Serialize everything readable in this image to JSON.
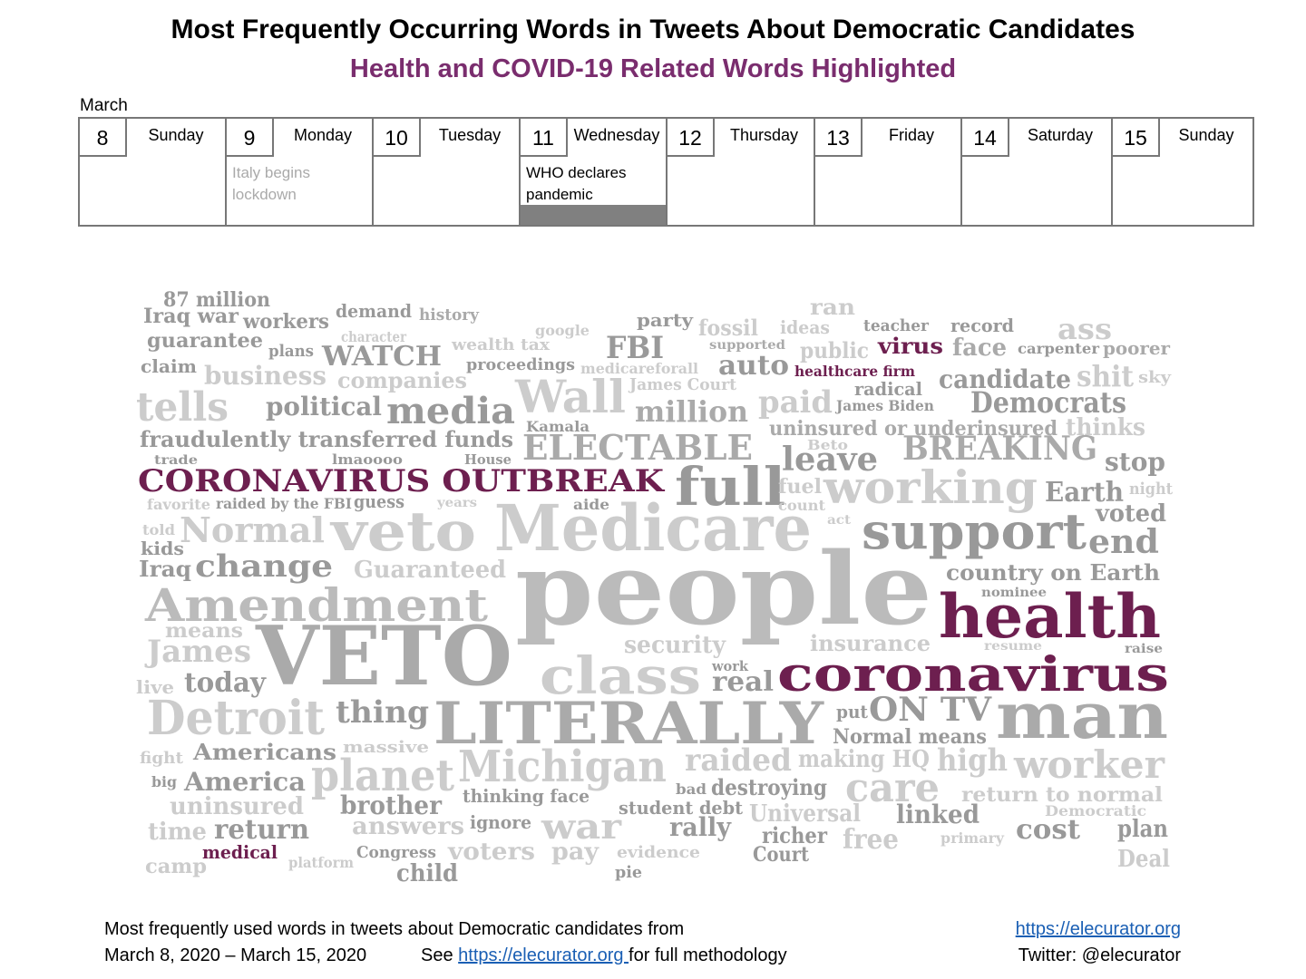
{
  "header": {
    "title": "Most Frequently Occurring Words in Tweets About Democratic Candidates",
    "subtitle": "Health and COVID-19 Related Words Highlighted"
  },
  "calendar": {
    "month": "March",
    "days": [
      {
        "date": 8,
        "weekday": "Sunday"
      },
      {
        "date": 9,
        "weekday": "Monday",
        "event": "Italy begins lockdown"
      },
      {
        "date": 10,
        "weekday": "Tuesday"
      },
      {
        "date": 11,
        "weekday": "Wednesday",
        "event": "WHO declares pandemic"
      },
      {
        "date": 12,
        "weekday": "Thursday"
      },
      {
        "date": 13,
        "weekday": "Friday"
      },
      {
        "date": 14,
        "weekday": "Saturday"
      },
      {
        "date": 15,
        "weekday": "Sunday"
      }
    ]
  },
  "word_cloud": {
    "words": [
      {
        "text": "87 million",
        "color": "#999"
      },
      {
        "text": "Iraq war",
        "color": "#999"
      },
      {
        "text": "workers",
        "color": "#999"
      },
      {
        "text": "demand",
        "color": "#999"
      },
      {
        "text": "history",
        "color": "#aaa"
      },
      {
        "text": "ran",
        "color": "#ccc"
      },
      {
        "text": "party",
        "color": "#999"
      },
      {
        "text": "fossil",
        "color": "#ccc"
      },
      {
        "text": "ideas",
        "color": "#ccc"
      },
      {
        "text": "teacher",
        "color": "#999"
      },
      {
        "text": "record",
        "color": "#999"
      },
      {
        "text": "ass",
        "color": "#ccc"
      },
      {
        "text": "google",
        "color": "#ccc"
      },
      {
        "text": "character",
        "color": "#ccc"
      },
      {
        "text": "guarantee",
        "color": "#999"
      },
      {
        "text": "plans",
        "color": "#999"
      },
      {
        "text": "WATCH",
        "color": "#999"
      },
      {
        "text": "wealth tax",
        "color": "#ccc"
      },
      {
        "text": "FBI",
        "color": "#999"
      },
      {
        "text": "supported",
        "color": "#aaa"
      },
      {
        "text": "public",
        "color": "#ccc"
      },
      {
        "text": "virus",
        "color": "#6d1f4f"
      },
      {
        "text": "face",
        "color": "#aaa"
      },
      {
        "text": "carpenter",
        "color": "#999"
      },
      {
        "text": "poorer",
        "color": "#aaa"
      },
      {
        "text": "claim",
        "color": "#999"
      },
      {
        "text": "business",
        "color": "#ccc"
      },
      {
        "text": "companies",
        "color": "#ccc"
      },
      {
        "text": "proceedings",
        "color": "#999"
      },
      {
        "text": "medicareforall",
        "color": "#ccc"
      },
      {
        "text": "auto",
        "color": "#999"
      },
      {
        "text": "healthcare firm",
        "color": "#6d1f4f"
      },
      {
        "text": "candidate",
        "color": "#999"
      },
      {
        "text": "shit",
        "color": "#ccc"
      },
      {
        "text": "sky",
        "color": "#ccc"
      },
      {
        "text": "James Court",
        "color": "#ccc"
      },
      {
        "text": "radical",
        "color": "#999"
      },
      {
        "text": "tells",
        "color": "#ccc"
      },
      {
        "text": "political",
        "color": "#999"
      },
      {
        "text": "media",
        "color": "#999"
      },
      {
        "text": "Wall",
        "color": "#ccc"
      },
      {
        "text": "million",
        "color": "#aaa"
      },
      {
        "text": "paid",
        "color": "#ccc"
      },
      {
        "text": "James Biden",
        "color": "#999"
      },
      {
        "text": "Democrats",
        "color": "#999"
      },
      {
        "text": "Kamala",
        "color": "#999"
      },
      {
        "text": "uninsured or underinsured",
        "color": "#aaa"
      },
      {
        "text": "thinks",
        "color": "#ccc"
      },
      {
        "text": "fraudulently transferred funds",
        "color": "#999"
      },
      {
        "text": "ELECTABLE",
        "color": "#aaa"
      },
      {
        "text": "Beto",
        "color": "#ccc"
      },
      {
        "text": "BREAKING",
        "color": "#aaa"
      },
      {
        "text": "trade",
        "color": "#999"
      },
      {
        "text": "lmaoooo",
        "color": "#999"
      },
      {
        "text": "House",
        "color": "#999"
      },
      {
        "text": "leave",
        "color": "#999"
      },
      {
        "text": "stop",
        "color": "#999"
      },
      {
        "text": "CORONAVIRUS OUTBREAK",
        "color": "#6d1f4f"
      },
      {
        "text": "full",
        "color": "#999"
      },
      {
        "text": "fuel",
        "color": "#ccc"
      },
      {
        "text": "working",
        "color": "#ccc"
      },
      {
        "text": "Earth",
        "color": "#999"
      },
      {
        "text": "night",
        "color": "#ccc"
      },
      {
        "text": "favorite",
        "color": "#ccc"
      },
      {
        "text": "raided by the FBI",
        "color": "#999"
      },
      {
        "text": "guess",
        "color": "#999"
      },
      {
        "text": "years",
        "color": "#ccc"
      },
      {
        "text": "aide",
        "color": "#999"
      },
      {
        "text": "count",
        "color": "#ccc"
      },
      {
        "text": "veto",
        "color": "#ccc"
      },
      {
        "text": "Medicare",
        "color": "#ccc"
      },
      {
        "text": "act",
        "color": "#ccc"
      },
      {
        "text": "voted",
        "color": "#999"
      },
      {
        "text": "told",
        "color": "#ccc"
      },
      {
        "text": "Normal",
        "color": "#ccc"
      },
      {
        "text": "support",
        "color": "#999"
      },
      {
        "text": "kids",
        "color": "#999"
      },
      {
        "text": "end",
        "color": "#999"
      },
      {
        "text": "Iraq",
        "color": "#999"
      },
      {
        "text": "change",
        "color": "#999"
      },
      {
        "text": "Guaranteed",
        "color": "#ccc"
      },
      {
        "text": "people",
        "color": "#bbb"
      },
      {
        "text": "country on Earth",
        "color": "#999"
      },
      {
        "text": "nominee",
        "color": "#999"
      },
      {
        "text": "Amendment",
        "color": "#bbb"
      },
      {
        "text": "health",
        "color": "#6d1f4f"
      },
      {
        "text": "means",
        "color": "#ccc"
      },
      {
        "text": "James",
        "color": "#ccc"
      },
      {
        "text": "VETO",
        "color": "#aaa"
      },
      {
        "text": "security",
        "color": "#ccc"
      },
      {
        "text": "insurance",
        "color": "#ccc"
      },
      {
        "text": "resume",
        "color": "#ccc"
      },
      {
        "text": "raise",
        "color": "#999"
      },
      {
        "text": "class",
        "color": "#ccc"
      },
      {
        "text": "work",
        "color": "#999"
      },
      {
        "text": "coronavirus",
        "color": "#6d1f4f"
      },
      {
        "text": "real",
        "color": "#999"
      },
      {
        "text": "live",
        "color": "#ccc"
      },
      {
        "text": "today",
        "color": "#999"
      },
      {
        "text": "ON TV",
        "color": "#999"
      },
      {
        "text": "put",
        "color": "#999"
      },
      {
        "text": "man",
        "color": "#aaa"
      },
      {
        "text": "Detroit",
        "color": "#ccc"
      },
      {
        "text": "thing",
        "color": "#999"
      },
      {
        "text": "LITERALLY",
        "color": "#aaa"
      },
      {
        "text": "Normal means",
        "color": "#999"
      },
      {
        "text": "massive",
        "color": "#ccc"
      },
      {
        "text": "fight",
        "color": "#ccc"
      },
      {
        "text": "Americans",
        "color": "#999"
      },
      {
        "text": "raided",
        "color": "#ccc"
      },
      {
        "text": "making HQ",
        "color": "#ccc"
      },
      {
        "text": "high",
        "color": "#ccc"
      },
      {
        "text": "worker",
        "color": "#ccc"
      },
      {
        "text": "Michigan",
        "color": "#ccc"
      },
      {
        "text": "planet",
        "color": "#ccc"
      },
      {
        "text": "big",
        "color": "#999"
      },
      {
        "text": "America",
        "color": "#999"
      },
      {
        "text": "bad",
        "color": "#999"
      },
      {
        "text": "destroying",
        "color": "#999"
      },
      {
        "text": "care",
        "color": "#ccc"
      },
      {
        "text": "return to normal",
        "color": "#ccc"
      },
      {
        "text": "thinking face",
        "color": "#999"
      },
      {
        "text": "uninsured",
        "color": "#ccc"
      },
      {
        "text": "brother",
        "color": "#999"
      },
      {
        "text": "student debt",
        "color": "#999"
      },
      {
        "text": "Universal",
        "color": "#ccc"
      },
      {
        "text": "linked",
        "color": "#999"
      },
      {
        "text": "Democratic",
        "color": "#ccc"
      },
      {
        "text": "answers",
        "color": "#ccc"
      },
      {
        "text": "ignore",
        "color": "#999"
      },
      {
        "text": "war",
        "color": "#ccc"
      },
      {
        "text": "rally",
        "color": "#999"
      },
      {
        "text": "cost",
        "color": "#999"
      },
      {
        "text": "plan",
        "color": "#999"
      },
      {
        "text": "time",
        "color": "#ccc"
      },
      {
        "text": "return",
        "color": "#999"
      },
      {
        "text": "richer",
        "color": "#999"
      },
      {
        "text": "free",
        "color": "#ccc"
      },
      {
        "text": "primary",
        "color": "#ccc"
      },
      {
        "text": "medical",
        "color": "#6d1f4f"
      },
      {
        "text": "Congress",
        "color": "#999"
      },
      {
        "text": "voters",
        "color": "#ccc"
      },
      {
        "text": "pay",
        "color": "#ccc"
      },
      {
        "text": "evidence",
        "color": "#ccc"
      },
      {
        "text": "Court",
        "color": "#999"
      },
      {
        "text": "Deal",
        "color": "#ccc"
      },
      {
        "text": "camp",
        "color": "#ccc"
      },
      {
        "text": "platform",
        "color": "#ccc"
      },
      {
        "text": "child",
        "color": "#999"
      },
      {
        "text": "pie",
        "color": "#999"
      }
    ]
  },
  "footer": {
    "line1": "Most frequently used words in tweets about Democratic candidates from",
    "dates": "March 8, 2020 – March 15, 2020",
    "see": "See",
    "link": "https://elecurator.org ",
    "methodology": "for full methodology",
    "site": "https://elecurator.org",
    "twitter": "Twitter: @elecurator"
  }
}
